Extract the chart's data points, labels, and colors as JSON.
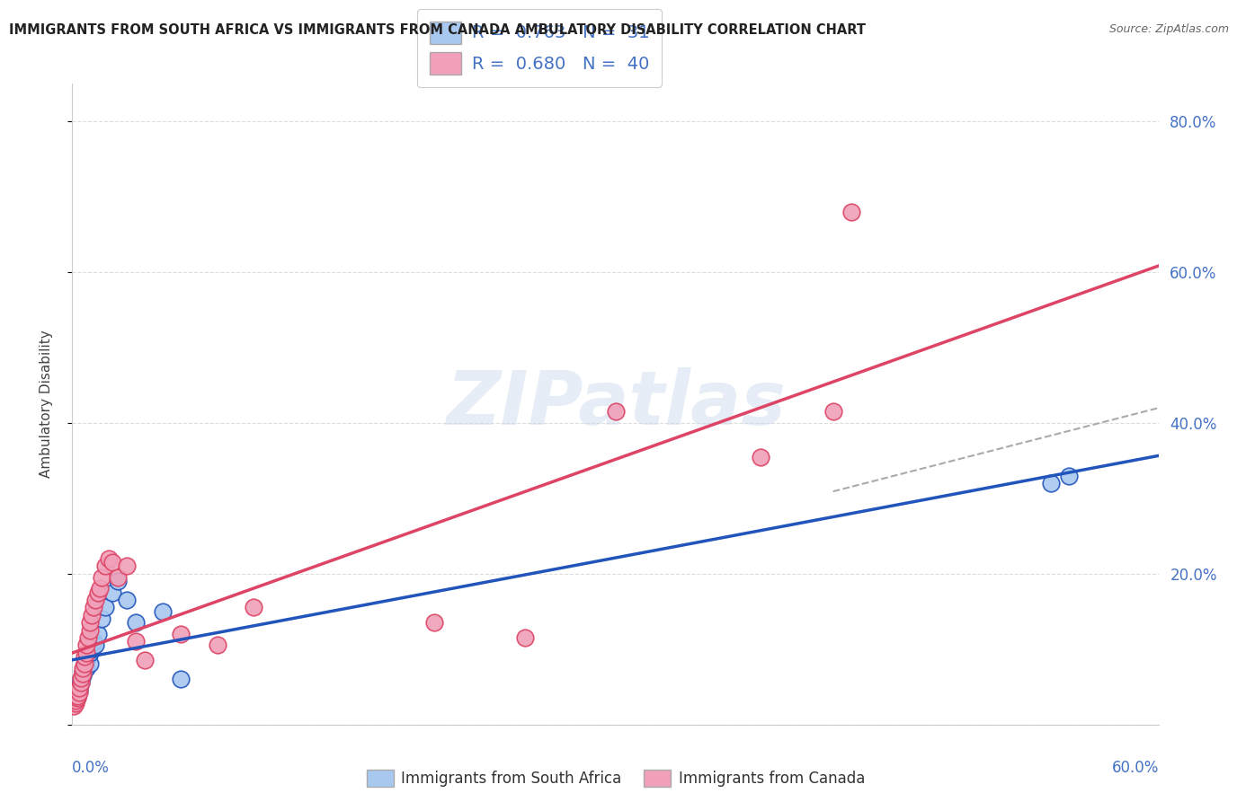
{
  "title": "IMMIGRANTS FROM SOUTH AFRICA VS IMMIGRANTS FROM CANADA AMBULATORY DISABILITY CORRELATION CHART",
  "source": "Source: ZipAtlas.com",
  "ylabel": "Ambulatory Disability",
  "legend_label1": "Immigrants from South Africa",
  "legend_label2": "Immigrants from Canada",
  "R1": 0.763,
  "N1": 31,
  "R2": 0.68,
  "N2": 40,
  "color_sa": "#A8C8F0",
  "color_ca": "#F0A0B8",
  "line_color_sa": "#2255BB",
  "line_color_ca": "#DD4466",
  "xlim": [
    0.0,
    0.6
  ],
  "ylim": [
    0.0,
    0.85
  ],
  "ytick_vals": [
    0.0,
    0.2,
    0.4,
    0.6,
    0.8
  ],
  "ytick_labels": [
    "",
    "20.0%",
    "40.0%",
    "60.0%",
    "80.0%"
  ],
  "xtick_vals": [
    0.0,
    0.1,
    0.2,
    0.3,
    0.4,
    0.5,
    0.6
  ],
  "scatter_sa_x": [
    0.001,
    0.002,
    0.003,
    0.003,
    0.004,
    0.004,
    0.005,
    0.005,
    0.006,
    0.006,
    0.007,
    0.007,
    0.008,
    0.008,
    0.009,
    0.01,
    0.01,
    0.011,
    0.012,
    0.013,
    0.014,
    0.016,
    0.018,
    0.022,
    0.025,
    0.03,
    0.035,
    0.05,
    0.06,
    0.54,
    0.55
  ],
  "scatter_sa_y": [
    0.03,
    0.035,
    0.038,
    0.042,
    0.045,
    0.05,
    0.055,
    0.06,
    0.065,
    0.07,
    0.075,
    0.08,
    0.075,
    0.085,
    0.09,
    0.08,
    0.095,
    0.1,
    0.11,
    0.105,
    0.12,
    0.14,
    0.155,
    0.175,
    0.19,
    0.165,
    0.135,
    0.15,
    0.06,
    0.32,
    0.33
  ],
  "scatter_ca_x": [
    0.001,
    0.002,
    0.002,
    0.003,
    0.003,
    0.004,
    0.004,
    0.005,
    0.005,
    0.006,
    0.006,
    0.007,
    0.007,
    0.008,
    0.008,
    0.009,
    0.01,
    0.01,
    0.011,
    0.012,
    0.013,
    0.014,
    0.015,
    0.016,
    0.018,
    0.02,
    0.022,
    0.025,
    0.03,
    0.035,
    0.04,
    0.06,
    0.08,
    0.1,
    0.2,
    0.25,
    0.3,
    0.38,
    0.42,
    0.43
  ],
  "scatter_ca_y": [
    0.025,
    0.028,
    0.032,
    0.035,
    0.038,
    0.042,
    0.048,
    0.055,
    0.062,
    0.068,
    0.075,
    0.08,
    0.09,
    0.095,
    0.105,
    0.115,
    0.125,
    0.135,
    0.145,
    0.155,
    0.165,
    0.175,
    0.18,
    0.195,
    0.21,
    0.22,
    0.215,
    0.195,
    0.21,
    0.11,
    0.085,
    0.12,
    0.105,
    0.155,
    0.135,
    0.115,
    0.415,
    0.355,
    0.415,
    0.68
  ],
  "watermark": "ZIPatlas",
  "background_color": "#FFFFFF",
  "grid_color": "#DDDDDD"
}
